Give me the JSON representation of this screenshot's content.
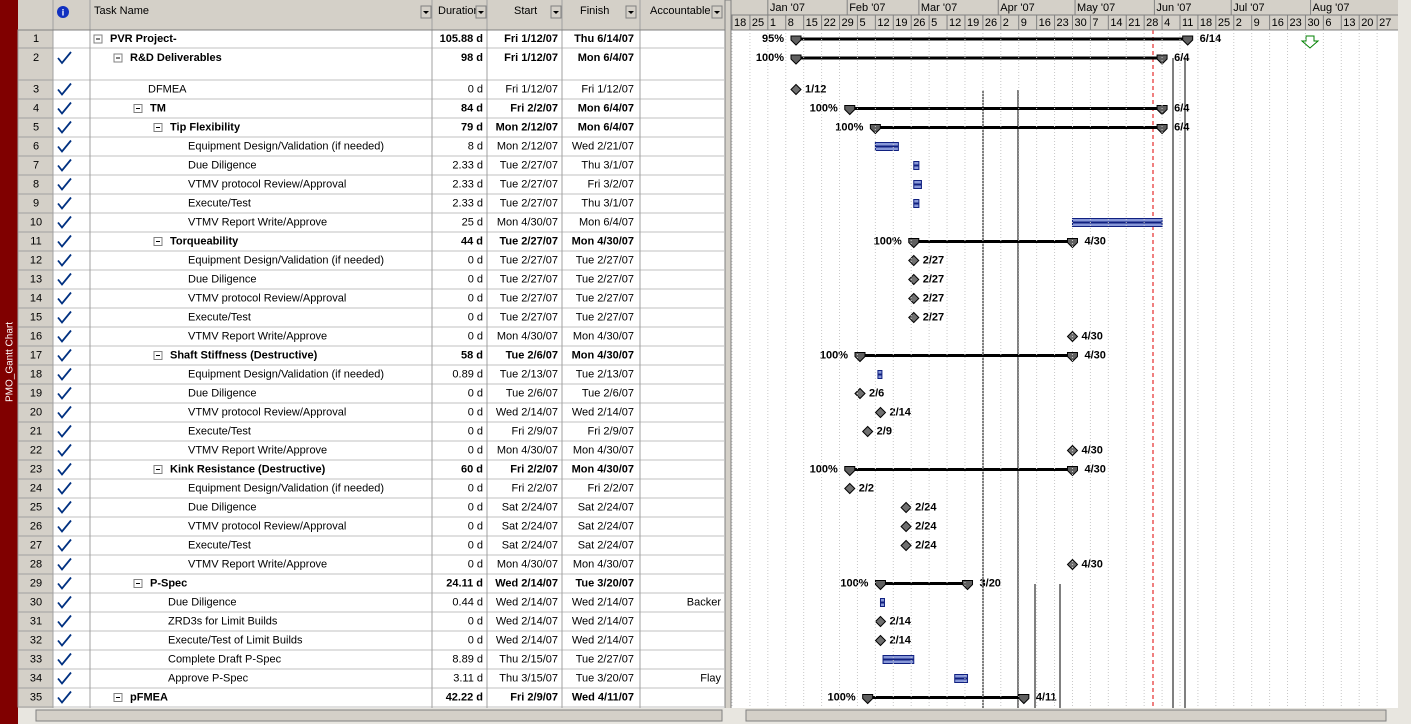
{
  "sidebar": "PMO_Gantt Chart",
  "columns": {
    "task_name": "Task Name",
    "duration": "Duration",
    "start": "Start",
    "finish": "Finish",
    "accountable": "Accountable"
  },
  "timescale": {
    "months": [
      "Jan '07",
      "Feb '07",
      "Mar '07",
      "Apr '07",
      "May '07",
      "Jun '07",
      "Jul '07",
      "Aug '07"
    ],
    "weeks": [
      "18",
      "25",
      "1",
      "8",
      "15",
      "22",
      "29",
      "5",
      "12",
      "19",
      "26",
      "5",
      "12",
      "19",
      "26",
      "2",
      "9",
      "16",
      "23",
      "30",
      "7",
      "14",
      "21",
      "28",
      "4",
      "11",
      "18",
      "25",
      "2",
      "9",
      "16",
      "23",
      "30",
      "6",
      "13",
      "20",
      "27"
    ]
  },
  "rows": [
    {
      "id": 1,
      "name": "PVR Project-",
      "duration": "105.88 d",
      "start": "Fri 1/12/07",
      "finish": "Thu 6/14/07",
      "level": 0,
      "kind": "summary",
      "left_label": "95%",
      "right_label": "6/14"
    },
    {
      "id": 2,
      "name": "R&D Deliverables",
      "duration": "98 d",
      "start": "Fri 1/12/07",
      "finish": "Mon 6/4/07",
      "level": 1,
      "kind": "summary",
      "check": true,
      "left_label": "100%",
      "right_label": "6/4"
    },
    {
      "id": 3,
      "name": "DFMEA",
      "duration": "0 d",
      "start": "Fri 1/12/07",
      "finish": "Fri 1/12/07",
      "level": 2,
      "kind": "milestone",
      "check": true,
      "right_label": "1/12"
    },
    {
      "id": 4,
      "name": "TM",
      "duration": "84 d",
      "start": "Fri 2/2/07",
      "finish": "Mon 6/4/07",
      "level": 2,
      "kind": "summary",
      "check": true,
      "left_label": "100%",
      "right_label": "6/4"
    },
    {
      "id": 5,
      "name": "Tip Flexibility",
      "duration": "79 d",
      "start": "Mon 2/12/07",
      "finish": "Mon 6/4/07",
      "level": 3,
      "kind": "summary",
      "check": true,
      "left_label": "100%",
      "right_label": "6/4"
    },
    {
      "id": 6,
      "name": "Equipment Design/Validation (if needed)",
      "duration": "8 d",
      "start": "Mon 2/12/07",
      "finish": "Wed 2/21/07",
      "level": 4,
      "kind": "task",
      "check": true
    },
    {
      "id": 7,
      "name": "Due Diligence",
      "duration": "2.33 d",
      "start": "Tue 2/27/07",
      "finish": "Thu 3/1/07",
      "level": 4,
      "kind": "task",
      "check": true
    },
    {
      "id": 8,
      "name": "VTMV protocol Review/Approval",
      "duration": "2.33 d",
      "start": "Tue 2/27/07",
      "finish": "Fri 3/2/07",
      "level": 4,
      "kind": "task",
      "check": true
    },
    {
      "id": 9,
      "name": "Execute/Test",
      "duration": "2.33 d",
      "start": "Tue 2/27/07",
      "finish": "Thu 3/1/07",
      "level": 4,
      "kind": "task",
      "check": true
    },
    {
      "id": 10,
      "name": "VTMV Report Write/Approve",
      "duration": "25 d",
      "start": "Mon 4/30/07",
      "finish": "Mon 6/4/07",
      "level": 4,
      "kind": "task",
      "check": true
    },
    {
      "id": 11,
      "name": "Torqueability",
      "duration": "44 d",
      "start": "Tue 2/27/07",
      "finish": "Mon 4/30/07",
      "level": 3,
      "kind": "summary",
      "check": true,
      "left_label": "100%",
      "right_label": "4/30"
    },
    {
      "id": 12,
      "name": "Equipment Design/Validation (if needed)",
      "duration": "0 d",
      "start": "Tue 2/27/07",
      "finish": "Tue 2/27/07",
      "level": 4,
      "kind": "milestone",
      "check": true,
      "right_label": "2/27"
    },
    {
      "id": 13,
      "name": "Due Diligence",
      "duration": "0 d",
      "start": "Tue 2/27/07",
      "finish": "Tue 2/27/07",
      "level": 4,
      "kind": "milestone",
      "check": true,
      "right_label": "2/27"
    },
    {
      "id": 14,
      "name": "VTMV protocol Review/Approval",
      "duration": "0 d",
      "start": "Tue 2/27/07",
      "finish": "Tue 2/27/07",
      "level": 4,
      "kind": "milestone",
      "check": true,
      "right_label": "2/27"
    },
    {
      "id": 15,
      "name": "Execute/Test",
      "duration": "0 d",
      "start": "Tue 2/27/07",
      "finish": "Tue 2/27/07",
      "level": 4,
      "kind": "milestone",
      "check": true,
      "right_label": "2/27"
    },
    {
      "id": 16,
      "name": "VTMV Report Write/Approve",
      "duration": "0 d",
      "start": "Mon 4/30/07",
      "finish": "Mon 4/30/07",
      "level": 4,
      "kind": "milestone",
      "check": true,
      "right_label": "4/30"
    },
    {
      "id": 17,
      "name": "Shaft Stiffness (Destructive)",
      "duration": "58 d",
      "start": "Tue 2/6/07",
      "finish": "Mon 4/30/07",
      "level": 3,
      "kind": "summary",
      "check": true,
      "left_label": "100%",
      "right_label": "4/30"
    },
    {
      "id": 18,
      "name": "Equipment Design/Validation (if needed)",
      "duration": "0.89 d",
      "start": "Tue 2/13/07",
      "finish": "Tue 2/13/07",
      "level": 4,
      "kind": "task",
      "check": true
    },
    {
      "id": 19,
      "name": "Due Diligence",
      "duration": "0 d",
      "start": "Tue 2/6/07",
      "finish": "Tue 2/6/07",
      "level": 4,
      "kind": "milestone",
      "check": true,
      "right_label": "2/6"
    },
    {
      "id": 20,
      "name": "VTMV protocol Review/Approval",
      "duration": "0 d",
      "start": "Wed 2/14/07",
      "finish": "Wed 2/14/07",
      "level": 4,
      "kind": "milestone",
      "check": true,
      "right_label": "2/14"
    },
    {
      "id": 21,
      "name": "Execute/Test",
      "duration": "0 d",
      "start": "Fri 2/9/07",
      "finish": "Fri 2/9/07",
      "level": 4,
      "kind": "milestone",
      "check": true,
      "right_label": "2/9"
    },
    {
      "id": 22,
      "name": "VTMV Report Write/Approve",
      "duration": "0 d",
      "start": "Mon 4/30/07",
      "finish": "Mon 4/30/07",
      "level": 4,
      "kind": "milestone",
      "check": true,
      "right_label": "4/30"
    },
    {
      "id": 23,
      "name": "Kink Resistance (Destructive)",
      "duration": "60 d",
      "start": "Fri 2/2/07",
      "finish": "Mon 4/30/07",
      "level": 3,
      "kind": "summary",
      "check": true,
      "left_label": "100%",
      "right_label": "4/30"
    },
    {
      "id": 24,
      "name": "Equipment Design/Validation (if needed)",
      "duration": "0 d",
      "start": "Fri 2/2/07",
      "finish": "Fri 2/2/07",
      "level": 4,
      "kind": "milestone",
      "check": true,
      "right_label": "2/2"
    },
    {
      "id": 25,
      "name": "Due Diligence",
      "duration": "0 d",
      "start": "Sat 2/24/07",
      "finish": "Sat 2/24/07",
      "level": 4,
      "kind": "milestone",
      "check": true,
      "right_label": "2/24"
    },
    {
      "id": 26,
      "name": "VTMV protocol Review/Approval",
      "duration": "0 d",
      "start": "Sat 2/24/07",
      "finish": "Sat 2/24/07",
      "level": 4,
      "kind": "milestone",
      "check": true,
      "right_label": "2/24"
    },
    {
      "id": 27,
      "name": "Execute/Test",
      "duration": "0 d",
      "start": "Sat 2/24/07",
      "finish": "Sat 2/24/07",
      "level": 4,
      "kind": "milestone",
      "check": true,
      "right_label": "2/24"
    },
    {
      "id": 28,
      "name": "VTMV Report Write/Approve",
      "duration": "0 d",
      "start": "Mon 4/30/07",
      "finish": "Mon 4/30/07",
      "level": 4,
      "kind": "milestone",
      "check": true,
      "right_label": "4/30"
    },
    {
      "id": 29,
      "name": "P-Spec",
      "duration": "24.11 d",
      "start": "Wed 2/14/07",
      "finish": "Tue 3/20/07",
      "level": 2,
      "kind": "summary",
      "check": true,
      "left_label": "100%",
      "right_label": "3/20"
    },
    {
      "id": 30,
      "name": "Due Diligence",
      "duration": "0.44 d",
      "start": "Wed 2/14/07",
      "finish": "Wed 2/14/07",
      "accountable": "Backer",
      "level": 3,
      "kind": "task",
      "check": true
    },
    {
      "id": 31,
      "name": "ZRD3s for Limit Builds",
      "duration": "0 d",
      "start": "Wed 2/14/07",
      "finish": "Wed 2/14/07",
      "level": 3,
      "kind": "milestone",
      "check": true,
      "right_label": "2/14"
    },
    {
      "id": 32,
      "name": "Execute/Test of Limit Builds",
      "duration": "0 d",
      "start": "Wed 2/14/07",
      "finish": "Wed 2/14/07",
      "level": 3,
      "kind": "milestone",
      "check": true,
      "right_label": "2/14"
    },
    {
      "id": 33,
      "name": "Complete Draft P-Spec",
      "duration": "8.89 d",
      "start": "Thu 2/15/07",
      "finish": "Tue 2/27/07",
      "level": 3,
      "kind": "task",
      "check": true
    },
    {
      "id": 34,
      "name": "Approve P-Spec",
      "duration": "3.11 d",
      "start": "Thu 3/15/07",
      "finish": "Tue 3/20/07",
      "accountable": "Flay",
      "level": 3,
      "kind": "task",
      "check": true
    },
    {
      "id": 35,
      "name": "pFMEA",
      "duration": "42.22 d",
      "start": "Fri 2/9/07",
      "finish": "Wed 4/11/07",
      "level": 1,
      "kind": "summary",
      "check": true,
      "left_label": "100%",
      "right_label": "4/11"
    }
  ]
}
